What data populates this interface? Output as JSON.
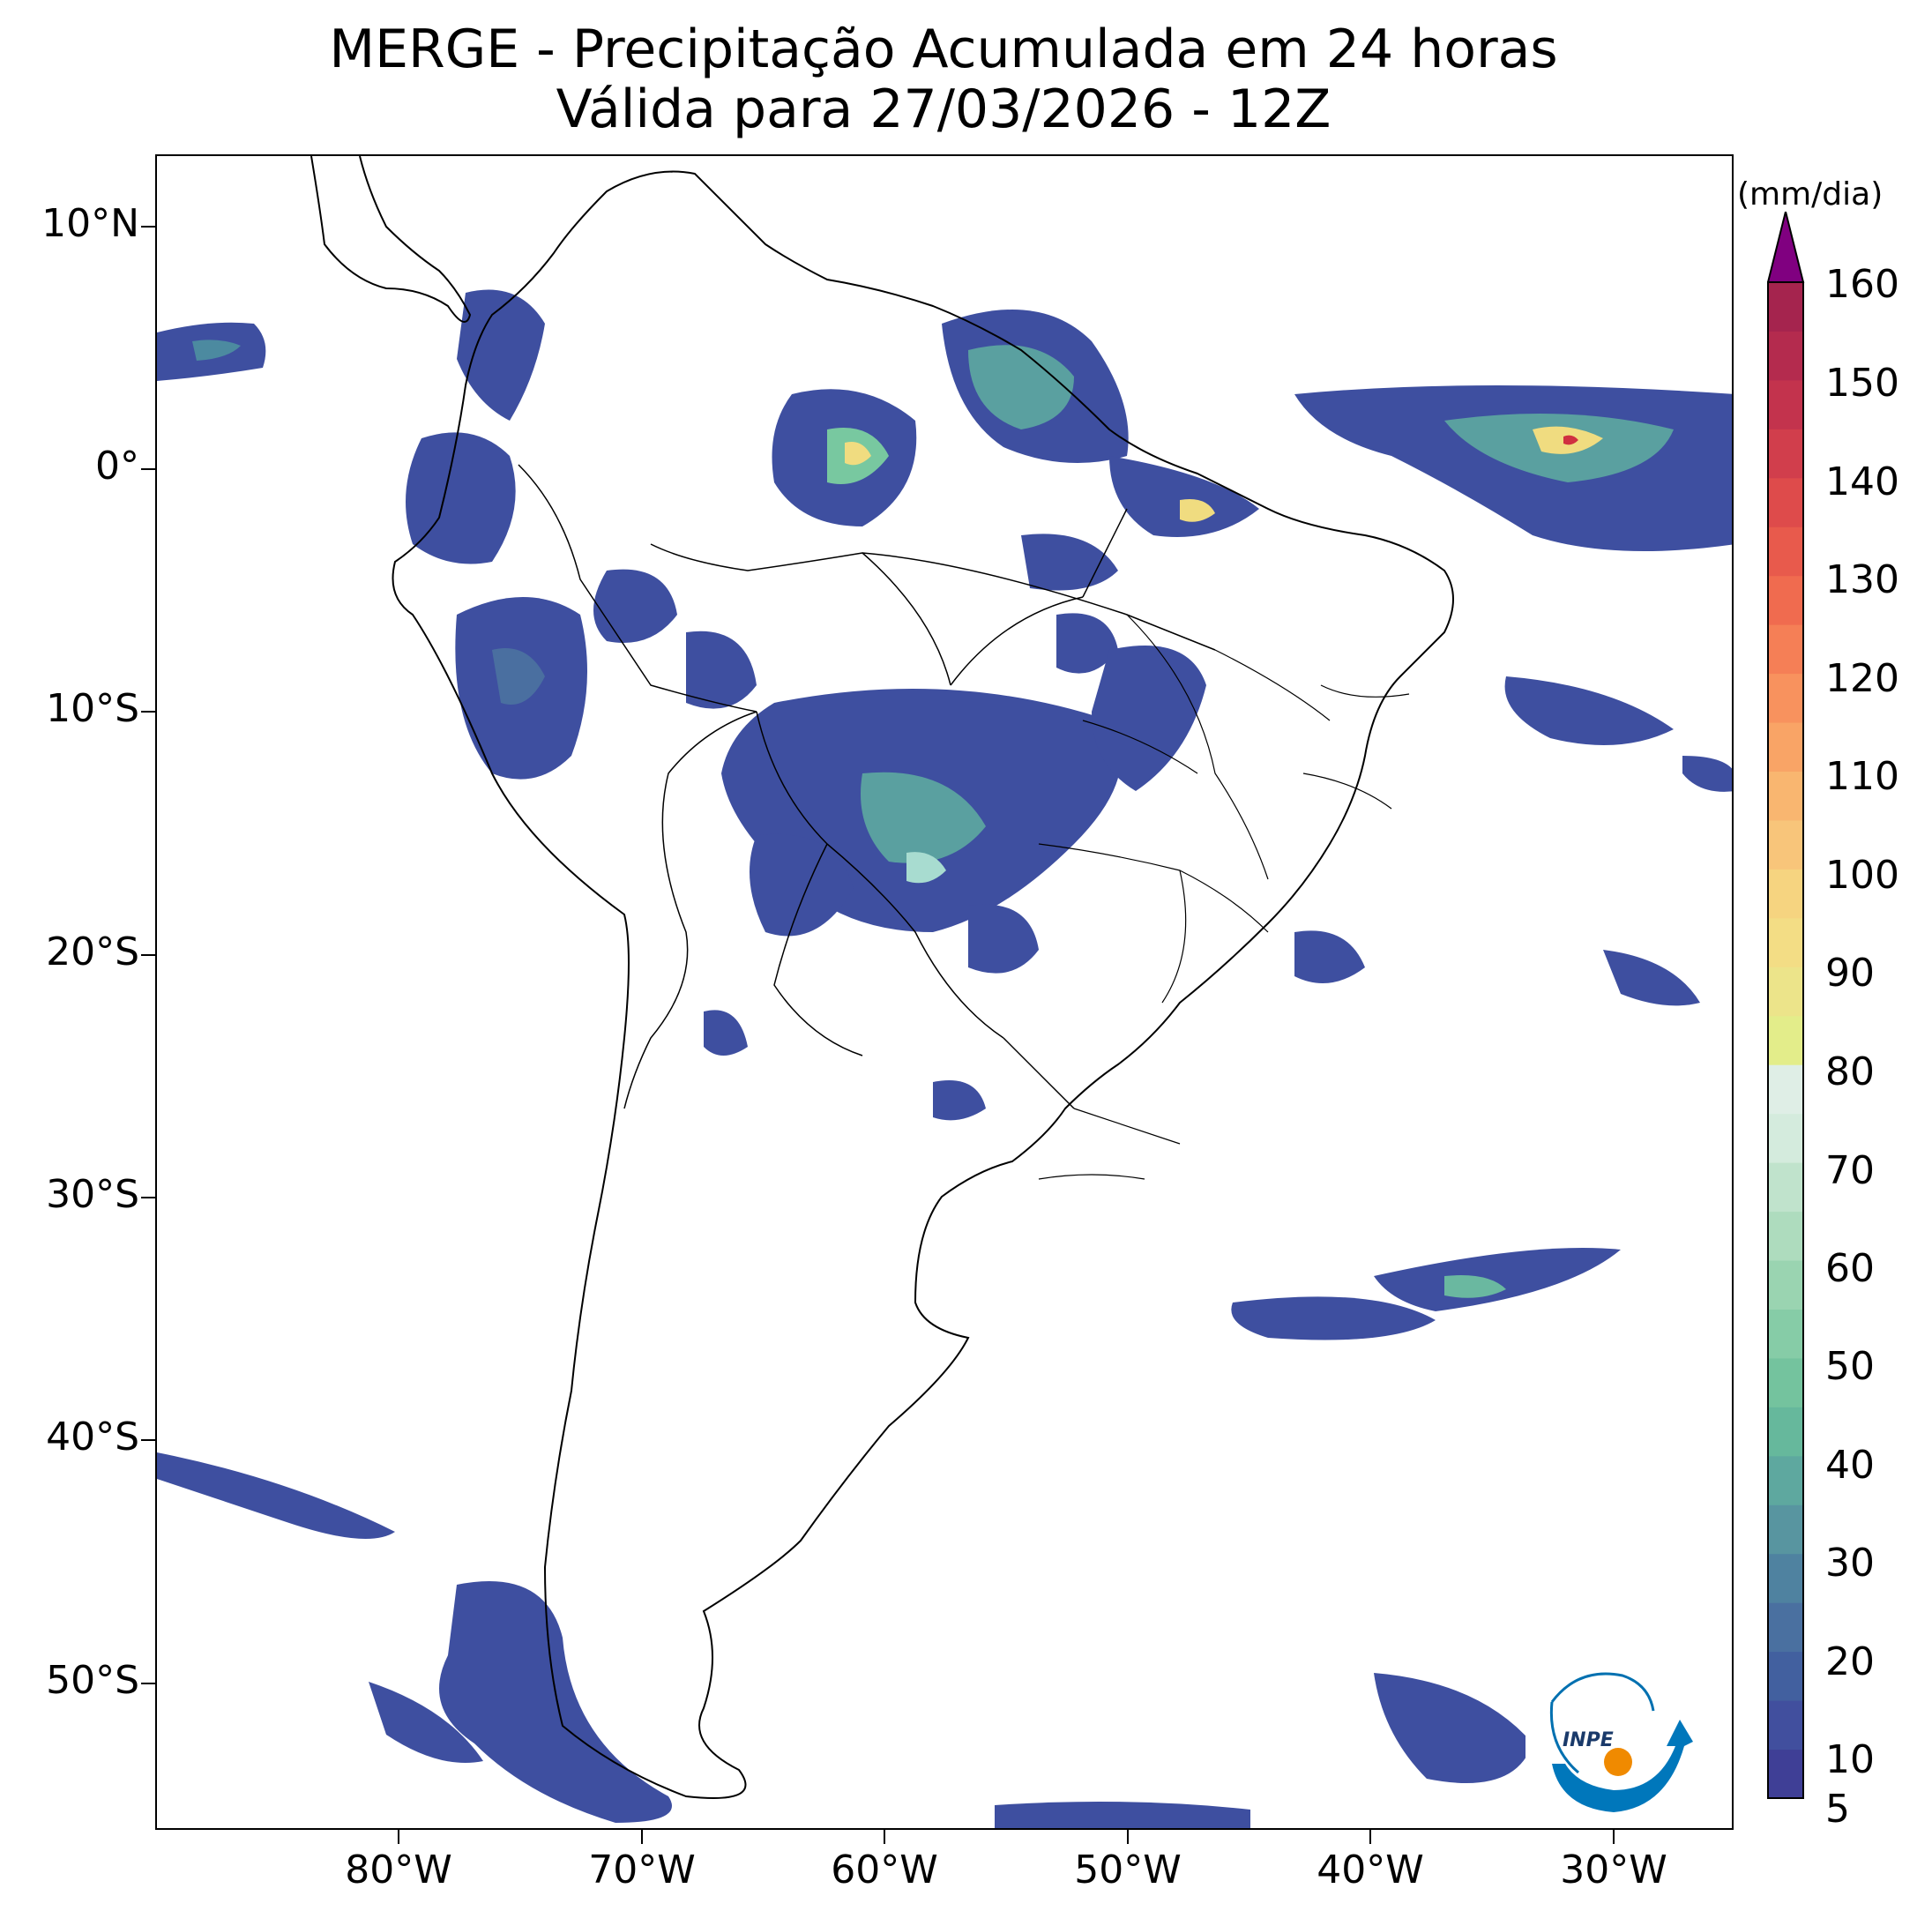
{
  "title": {
    "line1": "MERGE - Precipitação Acumulada em 24 horas",
    "line2": "Válida para 27/03/2026 - 12Z"
  },
  "map": {
    "lon_range": [
      -90,
      -25
    ],
    "lat_range": [
      -56,
      13
    ],
    "lat_ticks": [
      {
        "value": 10,
        "label": "10°N"
      },
      {
        "value": 0,
        "label": "0°"
      },
      {
        "value": -10,
        "label": "10°S"
      },
      {
        "value": -20,
        "label": "20°S"
      },
      {
        "value": -30,
        "label": "30°S"
      },
      {
        "value": -40,
        "label": "40°S"
      },
      {
        "value": -50,
        "label": "50°S"
      }
    ],
    "lon_ticks": [
      {
        "value": -80,
        "label": "80°W"
      },
      {
        "value": -70,
        "label": "70°W"
      },
      {
        "value": -60,
        "label": "60°W"
      },
      {
        "value": -50,
        "label": "50°W"
      },
      {
        "value": -40,
        "label": "40°W"
      },
      {
        "value": -30,
        "label": "30°W"
      }
    ]
  },
  "colorbar": {
    "unit": "(mm/dia)",
    "min": 5,
    "max": 160,
    "extend": "max",
    "labels": [
      "160",
      "150",
      "140",
      "130",
      "120",
      "110",
      "100",
      "90",
      "80",
      "70",
      "60",
      "50",
      "40",
      "30",
      "20",
      "10",
      "5"
    ],
    "over_color": "#800080"
  },
  "logo": {
    "text": "INPE"
  }
}
